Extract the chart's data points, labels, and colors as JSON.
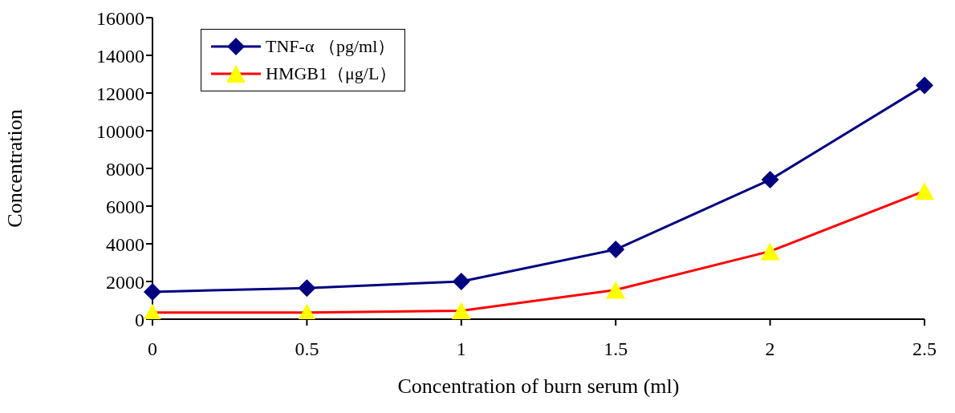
{
  "chart_data": {
    "type": "line",
    "xlabel": "Concentration of burn serum (ml)",
    "ylabel": "Concentration",
    "categories": [
      "0",
      "0.5",
      "1",
      "1.5",
      "2",
      "2.5"
    ],
    "series": [
      {
        "name": "TNF-α （pg/ml）",
        "color": "#000080",
        "marker": "diamond",
        "values": [
          1450,
          1650,
          2000,
          3700,
          7400,
          12400
        ]
      },
      {
        "name": "HMGB1（μg/L）",
        "color": "#ff0000",
        "marker": "triangle",
        "colors": [
          "#ffff00",
          "#ffff00",
          "#ffff00",
          "#ffff00",
          "#ffff00",
          "#ffff00"
        ],
        "values": [
          350,
          350,
          450,
          1550,
          3600,
          6800
        ]
      }
    ],
    "ylim": [
      0,
      16000
    ],
    "yticks": [
      0,
      2000,
      4000,
      6000,
      8000,
      10000,
      12000,
      14000,
      16000
    ],
    "grid": false,
    "legend": "top left",
    "line_style": "solid"
  }
}
